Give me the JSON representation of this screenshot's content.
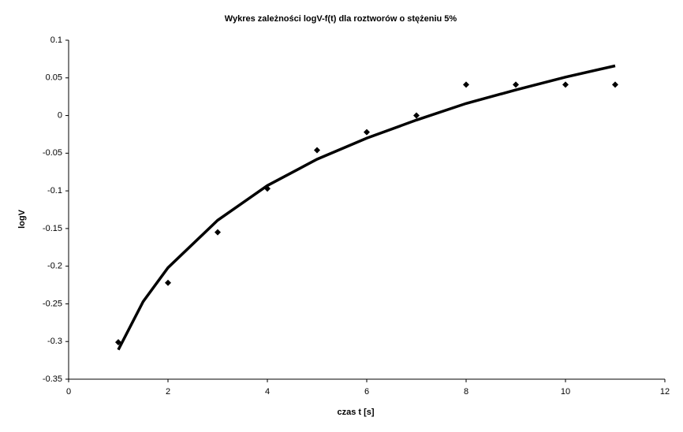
{
  "chart_data": {
    "type": "scatter",
    "title": "Wykres zależności logV-f(t) dla roztworów o stężeniu 5%",
    "xlabel": "czas t [s]",
    "ylabel": "logV",
    "x": [
      1,
      2,
      3,
      4,
      5,
      6,
      7,
      8,
      9,
      10,
      11
    ],
    "values": [
      -0.301,
      -0.222,
      -0.155,
      -0.097,
      -0.046,
      -0.022,
      0,
      0.041,
      0.041,
      0.041,
      0.041
    ],
    "color": "#000000",
    "trendline": {
      "color": "#000000",
      "x": [
        1,
        1.5,
        2,
        3,
        4,
        5,
        6,
        7,
        8,
        9,
        10,
        11
      ],
      "values": [
        -0.311,
        -0.247,
        -0.202,
        -0.139,
        -0.093,
        -0.058,
        -0.03,
        -0.006,
        0.016,
        0.034,
        0.051,
        0.066
      ]
    },
    "xlim": [
      0,
      12
    ],
    "xticks": [
      0,
      2,
      4,
      6,
      8,
      10,
      12
    ],
    "ylim": [
      -0.35,
      0.1
    ],
    "yticks": [
      -0.35,
      -0.3,
      -0.25,
      -0.2,
      -0.15,
      -0.1,
      -0.05,
      0,
      0.05,
      0.1
    ],
    "grid": false
  }
}
